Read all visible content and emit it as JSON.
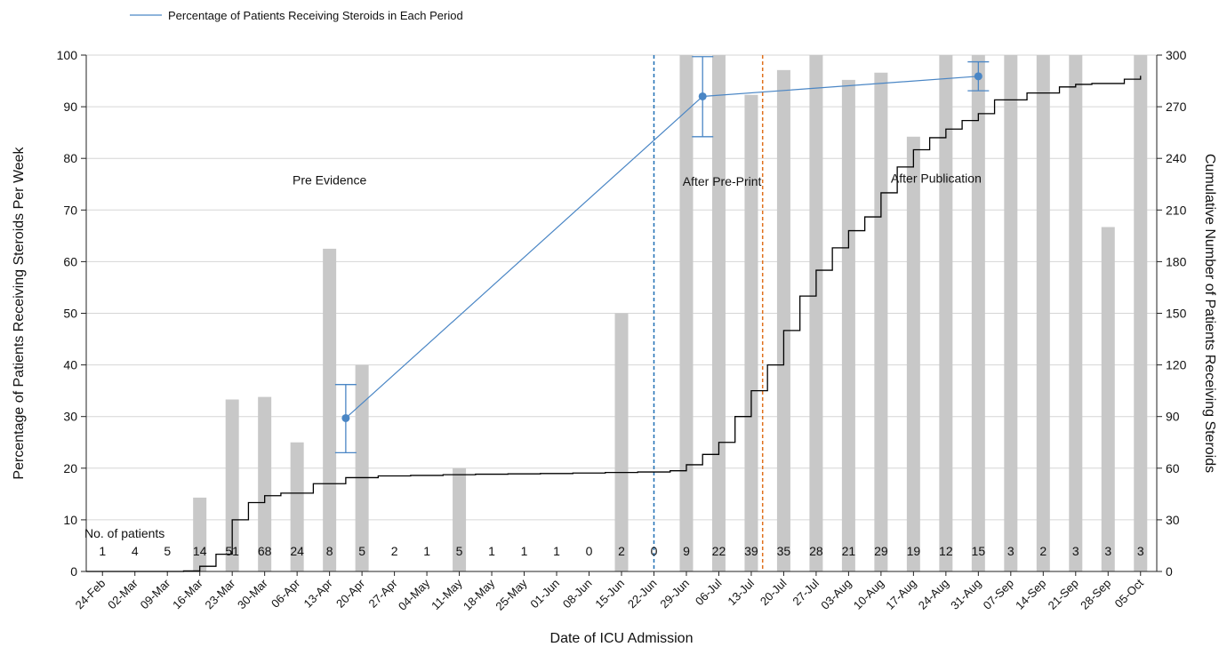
{
  "chart_data": {
    "type": "bar",
    "legend": {
      "label": "Percentage of Patients Receiving Steroids in Each Period",
      "position": "top-left",
      "color": "#4a86c5"
    },
    "categories": [
      "24-Feb",
      "02-Mar",
      "09-Mar",
      "16-Mar",
      "23-Mar",
      "30-Mar",
      "06-Apr",
      "13-Apr",
      "20-Apr",
      "27-Apr",
      "04-May",
      "11-May",
      "18-May",
      "25-May",
      "01-Jun",
      "08-Jun",
      "15-Jun",
      "22-Jun",
      "29-Jun",
      "06-Jul",
      "13-Jul",
      "20-Jul",
      "27-Jul",
      "03-Aug",
      "10-Aug",
      "17-Aug",
      "24-Aug",
      "31-Aug",
      "07-Sep",
      "14-Sep",
      "21-Sep",
      "28-Sep",
      "05-Oct"
    ],
    "xlabel": "Date of ICU Admission",
    "ylabel_left": "Percentage of Patients Receiving Steroids Per Week",
    "ylabel_right": "Cumulative Number of Patients Receiving Steroids",
    "ylim_left": [
      0,
      100
    ],
    "ylim_right": [
      0,
      300
    ],
    "yticks_left": [
      "0",
      "10",
      "20",
      "30",
      "40",
      "50",
      "60",
      "70",
      "80",
      "90",
      "100"
    ],
    "yticks_right": [
      "0",
      "30",
      "60",
      "90",
      "120",
      "150",
      "180",
      "210",
      "240",
      "270",
      "300"
    ],
    "grid": true,
    "bar_color": "#c8c8c8",
    "weekly_percent": [
      0,
      0,
      0,
      14.3,
      33.3,
      33.8,
      25,
      62.5,
      40,
      0,
      0,
      20,
      0,
      0,
      0,
      0,
      50,
      0,
      100,
      100,
      92.3,
      97.1,
      100,
      95.2,
      96.6,
      84.2,
      100,
      100,
      100,
      100,
      100,
      66.7,
      100
    ],
    "patients_label": "No. of patients",
    "patients": [
      "1",
      "4",
      "5",
      "14",
      "51",
      "68",
      "24",
      "8",
      "5",
      "2",
      "1",
      "5",
      "1",
      "1",
      "1",
      "0",
      "2",
      "0",
      "9",
      "22",
      "39",
      "35",
      "28",
      "21",
      "29",
      "19",
      "12",
      "15",
      "3",
      "2",
      "3",
      "3",
      "3"
    ],
    "period_percent": [
      {
        "x": 8,
        "value": 29.7,
        "lower": 23,
        "upper": 36.2
      },
      {
        "x": 19,
        "value": 92,
        "lower": 84.2,
        "upper": 99.7
      },
      {
        "x": 27.5,
        "value": 95.9,
        "lower": 93.1,
        "upper": 98.7
      }
    ],
    "period_color": "#4a86c5",
    "cumulative_curve": [
      [
        0,
        0
      ],
      [
        3,
        0.3
      ],
      [
        3.5,
        3
      ],
      [
        4,
        10
      ],
      [
        4.5,
        30
      ],
      [
        5,
        40
      ],
      [
        5.5,
        44
      ],
      [
        6,
        45.5
      ],
      [
        7,
        51
      ],
      [
        8,
        54.5
      ],
      [
        9,
        55.5
      ],
      [
        10,
        55.8
      ],
      [
        11,
        56.2
      ],
      [
        12,
        56.5
      ],
      [
        13,
        56.7
      ],
      [
        14,
        56.9
      ],
      [
        15,
        57.2
      ],
      [
        16,
        57.5
      ],
      [
        17,
        57.8
      ],
      [
        18,
        58.5
      ],
      [
        18.5,
        62
      ],
      [
        19,
        68
      ],
      [
        19.5,
        75
      ],
      [
        20,
        90
      ],
      [
        20.5,
        105
      ],
      [
        21,
        120
      ],
      [
        21.5,
        140
      ],
      [
        22,
        160
      ],
      [
        22.5,
        175
      ],
      [
        23,
        188
      ],
      [
        23.5,
        198
      ],
      [
        24,
        206
      ],
      [
        24.5,
        220
      ],
      [
        25,
        235
      ],
      [
        25.5,
        245
      ],
      [
        26,
        252
      ],
      [
        26.5,
        257
      ],
      [
        27,
        262
      ],
      [
        27.5,
        266
      ],
      [
        28,
        274
      ],
      [
        29,
        278
      ],
      [
        30,
        281.5
      ],
      [
        30.5,
        283
      ],
      [
        31,
        283.5
      ],
      [
        32,
        286
      ],
      [
        32.5,
        288
      ]
    ],
    "annotations": [
      {
        "text": "Pre Evidence",
        "x": 7.5,
        "y": 75
      },
      {
        "text": "After Pre-Print",
        "x": 19.6,
        "y": 74.7
      },
      {
        "text": "After Publication",
        "x": 26.2,
        "y": 75.3
      }
    ],
    "vlines": [
      {
        "x": 17.5,
        "color": "#1f6fb4"
      },
      {
        "x": 20.85,
        "color": "#e0701c"
      }
    ]
  }
}
